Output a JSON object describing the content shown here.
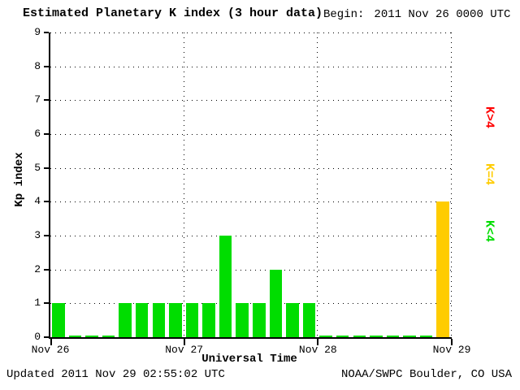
{
  "header": {
    "title": "Estimated Planetary K index (3 hour data)",
    "begin_label": "Begin:",
    "begin_value": "2011 Nov 26 0000 UTC"
  },
  "footer": {
    "updated": "Updated 2011 Nov 29 02:55:02 UTC",
    "source": "NOAA/SWPC Boulder, CO USA"
  },
  "chart_data": {
    "type": "bar",
    "title": "Estimated Planetary K index (3 hour data)",
    "xlabel": "Universal Time",
    "ylabel": "Kp index",
    "ylim": [
      0,
      9
    ],
    "yticks": [
      0,
      1,
      2,
      3,
      4,
      5,
      6,
      7,
      8,
      9
    ],
    "x_day_labels": [
      "Nov 26",
      "Nov 27",
      "Nov 28",
      "Nov 29"
    ],
    "interval_hours": 3,
    "values": [
      1,
      0,
      0,
      0,
      1,
      1,
      1,
      1,
      1,
      1,
      3,
      1,
      1,
      2,
      1,
      1,
      0,
      0,
      0,
      0,
      0,
      0,
      0,
      4
    ],
    "colors": {
      "lt4": "#00dd00",
      "eq4": "#ffcc00",
      "gt4": "#ff0000"
    },
    "legend": [
      {
        "label": "K>4",
        "color": "#ff0000"
      },
      {
        "label": "K=4",
        "color": "#ffcc00"
      },
      {
        "label": "K<4",
        "color": "#00dd00"
      }
    ],
    "grid": "dotted",
    "legend_position": "right"
  }
}
